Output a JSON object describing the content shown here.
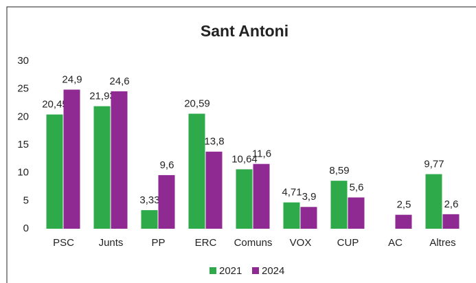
{
  "chart_data": {
    "type": "bar",
    "title": "Sant Antoni",
    "categories": [
      "PSC",
      "Junts",
      "PP",
      "ERC",
      "Comuns",
      "VOX",
      "CUP",
      "AC",
      "Altres"
    ],
    "series": [
      {
        "name": "2021",
        "color": "#2eaa4a",
        "values": [
          20.45,
          21.93,
          3.33,
          20.59,
          10.64,
          4.71,
          8.59,
          null,
          9.77
        ],
        "value_labels": [
          "20,45",
          "21,93",
          "3,33",
          "20,59",
          "10,64",
          "4,71",
          "8,59",
          null,
          "9,77"
        ]
      },
      {
        "name": "2024",
        "color": "#8f2a93",
        "values": [
          24.9,
          24.6,
          9.6,
          13.8,
          11.6,
          3.9,
          5.6,
          2.5,
          2.6
        ],
        "value_labels": [
          "24,9",
          "24,6",
          "9,6",
          "13,8",
          "11,6",
          "3,9",
          "5,6",
          "2,5",
          "2,6"
        ]
      }
    ],
    "ylim": [
      0,
      30
    ],
    "yticks": [
      0,
      5,
      10,
      15,
      20,
      25,
      30
    ],
    "grid": false,
    "legend": "bottom"
  }
}
